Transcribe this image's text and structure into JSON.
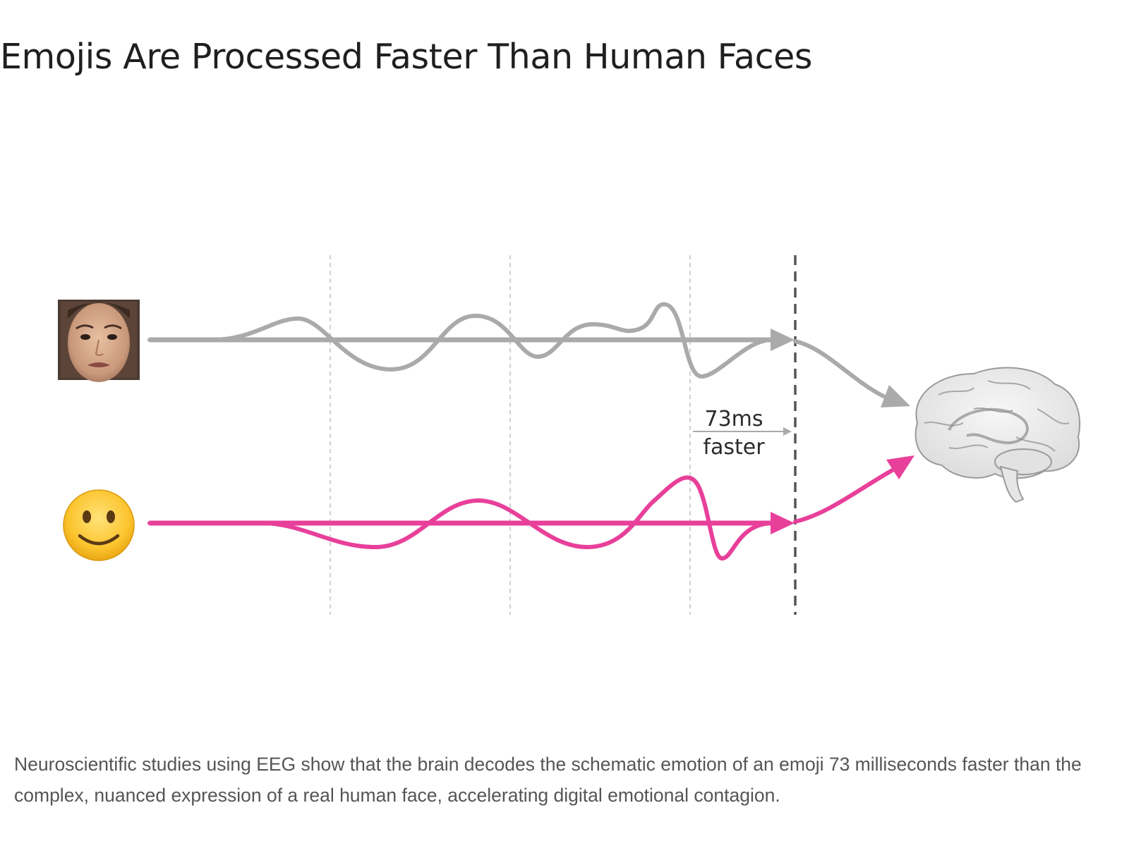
{
  "title": "Emojis Are Processed Faster Than Human Faces",
  "annotation": {
    "line1": "73ms",
    "line2": "faster"
  },
  "caption": "Neuroscientific studies using EEG show that the brain decodes the schematic emotion of an emoji 73 milliseconds faster than the complex, nuanced expression of a real human face, accelerating digital emotional contagion.",
  "colors": {
    "face_signal": "#aaaaaa",
    "emoji_signal": "#e8409a",
    "gridline": "#cfcfcf",
    "finish_line": "#555555"
  },
  "icons": {
    "face": "human-face-photo",
    "emoji": "smiling-face-emoji",
    "brain": "brain-illustration"
  }
}
